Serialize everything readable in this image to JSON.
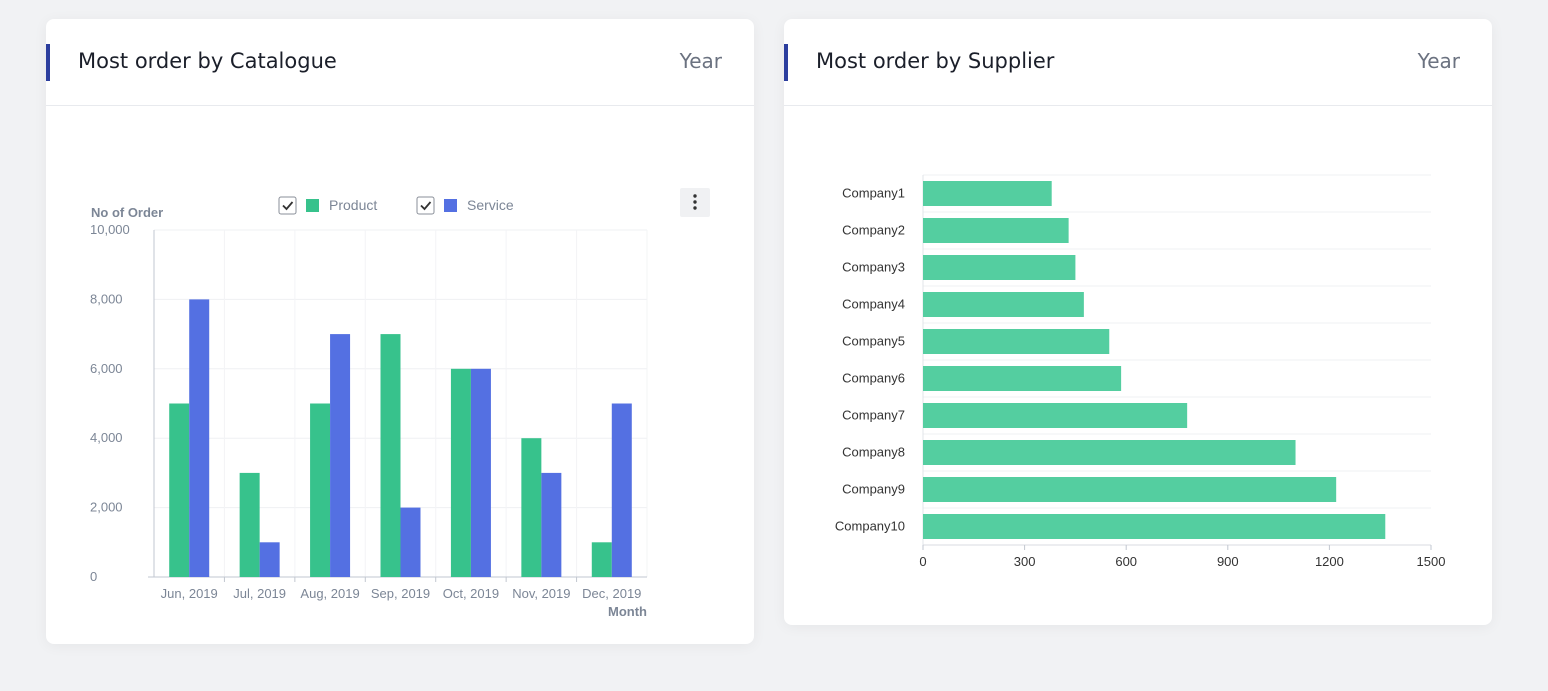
{
  "cards": [
    {
      "title": "Most order by Catalogue",
      "period": "Year"
    },
    {
      "title": "Most order by Supplier",
      "period": "Year"
    }
  ],
  "colors": {
    "product": "#37c28c",
    "service": "#5470e2",
    "supplier_bar": "#54cea0",
    "accent": "#2c3e9e"
  },
  "chart_data": [
    {
      "type": "bar",
      "title": "",
      "xlabel": "Month",
      "ylabel": "No of Order",
      "ylim": [
        0,
        10000
      ],
      "yticks": [
        "0",
        "2,000",
        "4,000",
        "6,000",
        "8,000",
        "10,000"
      ],
      "categories": [
        "Jun, 2019",
        "Jul, 2019",
        "Aug, 2019",
        "Sep, 2019",
        "Oct, 2019",
        "Nov, 2019",
        "Dec, 2019"
      ],
      "series": [
        {
          "name": "Product",
          "values": [
            5000,
            3000,
            5000,
            7000,
            6000,
            4000,
            1000
          ]
        },
        {
          "name": "Service",
          "values": [
            8000,
            1000,
            7000,
            2000,
            6000,
            3000,
            5000
          ]
        }
      ],
      "legend": "top",
      "grid": true
    },
    {
      "type": "bar",
      "orientation": "horizontal",
      "title": "",
      "xlabel": "",
      "ylabel": "",
      "xlim": [
        0,
        1500
      ],
      "xticks": [
        "0",
        "300",
        "600",
        "900",
        "1200",
        "1500"
      ],
      "categories": [
        "Company1",
        "Company2",
        "Company3",
        "Company4",
        "Company5",
        "Company6",
        "Company7",
        "Company8",
        "Company9",
        "Company10"
      ],
      "values": [
        380,
        430,
        450,
        475,
        550,
        585,
        780,
        1100,
        1220,
        1365
      ],
      "grid": true
    }
  ]
}
